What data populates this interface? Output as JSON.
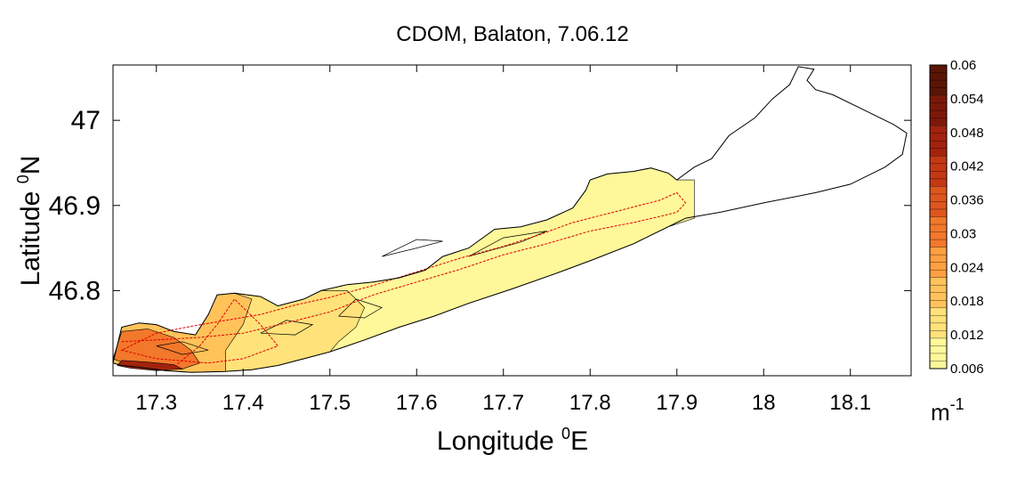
{
  "chart_data": {
    "type": "heatmap",
    "title": "CDOM, Balaton, 7.06.12",
    "xlabel": {
      "main": "Longitude ",
      "sup": "0",
      "tail": "E"
    },
    "ylabel": {
      "main": "Latitude ",
      "sup": "0",
      "tail": "N"
    },
    "xlim": [
      17.25,
      18.17
    ],
    "ylim": [
      46.7,
      47.065
    ],
    "x_ticks": [
      17.3,
      17.4,
      17.5,
      17.6,
      17.7,
      17.8,
      17.9,
      18,
      18.1
    ],
    "x_tick_labels": [
      "17.3",
      "17.4",
      "17.5",
      "17.6",
      "17.7",
      "17.8",
      "17.9",
      "18",
      "18.1"
    ],
    "y_ticks": [
      46.8,
      46.9,
      47
    ],
    "y_tick_labels": [
      "46.8",
      "46.9",
      "47"
    ],
    "colorbar": {
      "min": 0.006,
      "max": 0.06,
      "ticks": [
        0.006,
        0.012,
        0.018,
        0.024,
        0.03,
        0.036,
        0.042,
        0.048,
        0.054,
        0.06
      ],
      "tick_labels": [
        "0.006",
        "0.012",
        "0.018",
        "0.024",
        "0.03",
        "0.036",
        "0.042",
        "0.048",
        "0.054",
        "0.06"
      ],
      "unit": {
        "main": "m",
        "sup": "-1"
      },
      "colors": [
        "#fff89a",
        "#ffe27a",
        "#ffc35a",
        "#ffa040",
        "#f2782b",
        "#de561e",
        "#c43814",
        "#a3230d",
        "#7d1808",
        "#5a1505"
      ]
    },
    "lake_outline": [
      [
        17.25,
        46.715
      ],
      [
        17.26,
        46.757
      ],
      [
        17.28,
        46.762
      ],
      [
        17.3,
        46.76
      ],
      [
        17.32,
        46.752
      ],
      [
        17.345,
        46.748
      ],
      [
        17.36,
        46.772
      ],
      [
        17.37,
        46.795
      ],
      [
        17.39,
        46.797
      ],
      [
        17.42,
        46.793
      ],
      [
        17.44,
        46.782
      ],
      [
        17.47,
        46.79
      ],
      [
        17.49,
        46.8
      ],
      [
        17.52,
        46.807
      ],
      [
        17.55,
        46.81
      ],
      [
        17.58,
        46.815
      ],
      [
        17.61,
        46.824
      ],
      [
        17.63,
        46.84
      ],
      [
        17.66,
        46.85
      ],
      [
        17.69,
        46.872
      ],
      [
        17.72,
        46.875
      ],
      [
        17.75,
        46.883
      ],
      [
        17.78,
        46.897
      ],
      [
        17.795,
        46.918
      ],
      [
        17.8,
        46.93
      ],
      [
        17.82,
        46.937
      ],
      [
        17.85,
        46.94
      ],
      [
        17.87,
        46.944
      ],
      [
        17.89,
        46.938
      ],
      [
        17.9,
        46.93
      ],
      [
        17.92,
        46.945
      ],
      [
        17.94,
        46.955
      ],
      [
        17.96,
        46.982
      ],
      [
        17.99,
        47.003
      ],
      [
        18.01,
        47.025
      ],
      [
        18.03,
        47.042
      ],
      [
        18.04,
        47.063
      ],
      [
        18.058,
        47.06
      ],
      [
        18.05,
        47.047
      ],
      [
        18.06,
        47.036
      ],
      [
        18.08,
        47.03
      ],
      [
        18.12,
        47.01
      ],
      [
        18.15,
        46.995
      ],
      [
        18.165,
        46.985
      ],
      [
        18.16,
        46.96
      ],
      [
        18.14,
        46.945
      ],
      [
        18.1,
        46.925
      ],
      [
        18.06,
        46.915
      ],
      [
        18.0,
        46.903
      ],
      [
        17.95,
        46.892
      ],
      [
        17.91,
        46.885
      ],
      [
        17.89,
        46.875
      ],
      [
        17.85,
        46.855
      ],
      [
        17.8,
        46.835
      ],
      [
        17.76,
        46.82
      ],
      [
        17.71,
        46.802
      ],
      [
        17.66,
        46.785
      ],
      [
        17.62,
        46.77
      ],
      [
        17.58,
        46.757
      ],
      [
        17.54,
        46.742
      ],
      [
        17.5,
        46.728
      ],
      [
        17.47,
        46.72
      ],
      [
        17.44,
        46.712
      ],
      [
        17.41,
        46.707
      ],
      [
        17.38,
        46.705
      ],
      [
        17.34,
        46.704
      ],
      [
        17.31,
        46.706
      ],
      [
        17.28,
        46.71
      ],
      [
        17.26,
        46.712
      ],
      [
        17.25,
        46.715
      ]
    ],
    "cdom_zones": [
      {
        "value": 0.008,
        "polygon": [
          [
            17.44,
            46.782
          ],
          [
            17.47,
            46.79
          ],
          [
            17.49,
            46.8
          ],
          [
            17.52,
            46.807
          ],
          [
            17.55,
            46.81
          ],
          [
            17.58,
            46.815
          ],
          [
            17.61,
            46.824
          ],
          [
            17.63,
            46.84
          ],
          [
            17.66,
            46.85
          ],
          [
            17.69,
            46.872
          ],
          [
            17.72,
            46.875
          ],
          [
            17.75,
            46.883
          ],
          [
            17.78,
            46.897
          ],
          [
            17.795,
            46.918
          ],
          [
            17.8,
            46.93
          ],
          [
            17.82,
            46.937
          ],
          [
            17.85,
            46.94
          ],
          [
            17.87,
            46.944
          ],
          [
            17.89,
            46.938
          ],
          [
            17.9,
            46.93
          ],
          [
            17.92,
            46.93
          ],
          [
            17.92,
            46.885
          ],
          [
            17.89,
            46.875
          ],
          [
            17.85,
            46.855
          ],
          [
            17.8,
            46.835
          ],
          [
            17.76,
            46.82
          ],
          [
            17.71,
            46.802
          ],
          [
            17.66,
            46.785
          ],
          [
            17.62,
            46.77
          ],
          [
            17.58,
            46.757
          ],
          [
            17.54,
            46.742
          ],
          [
            17.5,
            46.728
          ],
          [
            17.47,
            46.72
          ],
          [
            17.44,
            46.712
          ]
        ]
      },
      {
        "value": 0.014,
        "polygon": [
          [
            17.39,
            46.797
          ],
          [
            17.42,
            46.793
          ],
          [
            17.44,
            46.782
          ],
          [
            17.47,
            46.79
          ],
          [
            17.49,
            46.8
          ],
          [
            17.52,
            46.8
          ],
          [
            17.54,
            46.78
          ],
          [
            17.53,
            46.757
          ],
          [
            17.51,
            46.74
          ],
          [
            17.5,
            46.728
          ],
          [
            17.47,
            46.72
          ],
          [
            17.44,
            46.712
          ],
          [
            17.41,
            46.707
          ],
          [
            17.38,
            46.705
          ],
          [
            17.36,
            46.72
          ],
          [
            17.36,
            46.772
          ],
          [
            17.37,
            46.795
          ]
        ]
      },
      {
        "value": 0.022,
        "polygon": [
          [
            17.25,
            46.715
          ],
          [
            17.26,
            46.757
          ],
          [
            17.28,
            46.762
          ],
          [
            17.3,
            46.76
          ],
          [
            17.32,
            46.752
          ],
          [
            17.345,
            46.748
          ],
          [
            17.36,
            46.772
          ],
          [
            17.37,
            46.795
          ],
          [
            17.39,
            46.797
          ],
          [
            17.41,
            46.79
          ],
          [
            17.4,
            46.76
          ],
          [
            17.38,
            46.73
          ],
          [
            17.38,
            46.705
          ],
          [
            17.34,
            46.704
          ],
          [
            17.31,
            46.706
          ],
          [
            17.28,
            46.71
          ],
          [
            17.26,
            46.712
          ]
        ]
      },
      {
        "value": 0.03,
        "polygon": [
          [
            17.25,
            46.72
          ],
          [
            17.26,
            46.752
          ],
          [
            17.29,
            46.755
          ],
          [
            17.32,
            46.745
          ],
          [
            17.34,
            46.73
          ],
          [
            17.35,
            46.715
          ],
          [
            17.33,
            46.708
          ],
          [
            17.3,
            46.708
          ],
          [
            17.27,
            46.712
          ]
        ]
      },
      {
        "value": 0.044,
        "polygon": [
          [
            17.255,
            46.712
          ],
          [
            17.26,
            46.718
          ],
          [
            17.29,
            46.716
          ],
          [
            17.32,
            46.713
          ],
          [
            17.33,
            46.708
          ],
          [
            17.3,
            46.706
          ],
          [
            17.27,
            46.709
          ]
        ]
      }
    ],
    "contour_lines": [
      [
        [
          17.56,
          46.84
        ],
        [
          17.6,
          46.86
        ],
        [
          17.63,
          46.858
        ],
        [
          17.6,
          46.85
        ],
        [
          17.56,
          46.84
        ]
      ],
      [
        [
          17.66,
          46.84
        ],
        [
          17.7,
          46.862
        ],
        [
          17.75,
          46.87
        ],
        [
          17.72,
          46.857
        ],
        [
          17.66,
          46.84
        ]
      ],
      [
        [
          17.42,
          46.75
        ],
        [
          17.45,
          46.765
        ],
        [
          17.48,
          46.76
        ],
        [
          17.46,
          46.748
        ],
        [
          17.42,
          46.75
        ]
      ],
      [
        [
          17.3,
          46.735
        ],
        [
          17.33,
          46.74
        ],
        [
          17.36,
          46.73
        ],
        [
          17.33,
          46.725
        ],
        [
          17.3,
          46.735
        ]
      ],
      [
        [
          17.51,
          46.77
        ],
        [
          17.53,
          46.79
        ],
        [
          17.56,
          46.78
        ],
        [
          17.54,
          46.768
        ],
        [
          17.51,
          46.77
        ]
      ]
    ],
    "survey_track": [
      [
        17.26,
        46.74
      ],
      [
        17.3,
        46.742
      ],
      [
        17.35,
        46.745
      ],
      [
        17.4,
        46.75
      ],
      [
        17.45,
        46.762
      ],
      [
        17.5,
        46.775
      ],
      [
        17.55,
        46.795
      ],
      [
        17.6,
        46.81
      ],
      [
        17.65,
        46.825
      ],
      [
        17.7,
        46.842
      ],
      [
        17.75,
        46.855
      ],
      [
        17.8,
        46.87
      ],
      [
        17.85,
        46.88
      ],
      [
        17.88,
        46.887
      ],
      [
        17.9,
        46.892
      ],
      [
        17.91,
        46.903
      ],
      [
        17.9,
        46.915
      ],
      [
        17.88,
        46.906
      ],
      [
        17.83,
        46.893
      ],
      [
        17.78,
        46.88
      ],
      [
        17.74,
        46.865
      ],
      [
        17.7,
        46.852
      ],
      [
        17.65,
        46.838
      ],
      [
        17.6,
        46.822
      ],
      [
        17.55,
        46.806
      ],
      [
        17.5,
        46.792
      ],
      [
        17.46,
        46.783
      ],
      [
        17.42,
        46.772
      ],
      [
        17.38,
        46.765
      ],
      [
        17.34,
        46.758
      ],
      [
        17.3,
        46.75
      ],
      [
        17.26,
        46.73
      ],
      [
        17.3,
        46.72
      ],
      [
        17.36,
        46.715
      ],
      [
        17.4,
        46.72
      ],
      [
        17.44,
        46.735
      ],
      [
        17.42,
        46.76
      ],
      [
        17.39,
        46.79
      ],
      [
        17.37,
        46.76
      ],
      [
        17.35,
        46.735
      ],
      [
        17.32,
        46.71
      ]
    ]
  }
}
